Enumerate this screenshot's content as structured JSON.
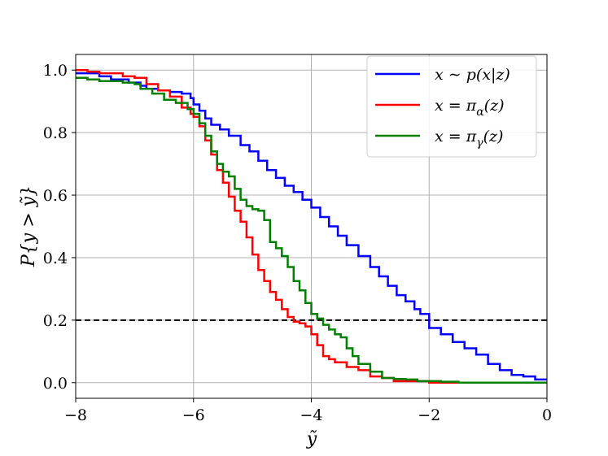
{
  "chart_data": {
    "type": "line",
    "xlabel": "ỹ",
    "ylabel": "P{y > ỹ}",
    "xlim": [
      -8,
      0
    ],
    "ylim": [
      -0.05,
      1.05
    ],
    "xticks": [
      -8,
      -6,
      -4,
      -2,
      0
    ],
    "xtick_labels": [
      "−8",
      "−6",
      "−4",
      "−2",
      "0"
    ],
    "yticks": [
      0.0,
      0.2,
      0.4,
      0.6,
      0.8,
      1.0
    ],
    "ytick_labels": [
      "0.0",
      "0.2",
      "0.4",
      "0.6",
      "0.8",
      "1.0"
    ],
    "grid": true,
    "legend_position": "top-right",
    "reference_line": {
      "y": 0.2,
      "style": "dashed",
      "color": "#000000"
    },
    "series": [
      {
        "name": "x ∼ p(x|z)",
        "color": "#0000ff",
        "x": [
          -8.0,
          -7.8,
          -7.6,
          -7.4,
          -7.1,
          -6.9,
          -6.8,
          -6.6,
          -6.4,
          -6.2,
          -6.05,
          -6.0,
          -5.9,
          -5.8,
          -5.7,
          -5.55,
          -5.4,
          -5.2,
          -5.05,
          -4.9,
          -4.75,
          -4.6,
          -4.45,
          -4.3,
          -4.15,
          -4.0,
          -3.85,
          -3.7,
          -3.55,
          -3.4,
          -3.2,
          -3.0,
          -2.85,
          -2.7,
          -2.55,
          -2.4,
          -2.25,
          -2.15,
          -2.0,
          -1.8,
          -1.6,
          -1.4,
          -1.2,
          -1.0,
          -0.8,
          -0.6,
          -0.4,
          -0.2,
          0.0
        ],
        "values": [
          0.99,
          0.99,
          0.98,
          0.97,
          0.96,
          0.95,
          0.94,
          0.935,
          0.93,
          0.925,
          0.91,
          0.89,
          0.87,
          0.845,
          0.825,
          0.81,
          0.79,
          0.76,
          0.74,
          0.71,
          0.68,
          0.655,
          0.63,
          0.61,
          0.585,
          0.56,
          0.53,
          0.5,
          0.47,
          0.44,
          0.405,
          0.37,
          0.34,
          0.31,
          0.28,
          0.26,
          0.235,
          0.22,
          0.175,
          0.155,
          0.13,
          0.11,
          0.09,
          0.06,
          0.04,
          0.025,
          0.02,
          0.01,
          0.01
        ]
      },
      {
        "name": "x = π_α(z)",
        "color": "#ff0000",
        "x": [
          -8.0,
          -7.8,
          -7.6,
          -7.4,
          -7.2,
          -7.0,
          -6.8,
          -6.6,
          -6.4,
          -6.2,
          -6.05,
          -6.0,
          -5.9,
          -5.8,
          -5.7,
          -5.6,
          -5.5,
          -5.4,
          -5.3,
          -5.2,
          -5.1,
          -5.0,
          -4.9,
          -4.8,
          -4.7,
          -4.6,
          -4.5,
          -4.4,
          -4.3,
          -4.2,
          -4.1,
          -4.0,
          -3.9,
          -3.8,
          -3.7,
          -3.6,
          -3.4,
          -3.2,
          -3.0,
          -2.8,
          -2.6,
          -2.4,
          -2.2,
          -2.0,
          -1.8,
          -1.5,
          -1.0,
          -0.5,
          0.0
        ],
        "values": [
          1.0,
          0.995,
          0.99,
          0.99,
          0.98,
          0.975,
          0.955,
          0.935,
          0.915,
          0.88,
          0.86,
          0.85,
          0.82,
          0.775,
          0.73,
          0.68,
          0.64,
          0.595,
          0.55,
          0.515,
          0.465,
          0.41,
          0.36,
          0.325,
          0.29,
          0.265,
          0.235,
          0.21,
          0.195,
          0.19,
          0.18,
          0.155,
          0.12,
          0.085,
          0.075,
          0.065,
          0.05,
          0.04,
          0.02,
          0.015,
          0.005,
          0.005,
          0.005,
          0.0,
          0.0,
          0.0,
          0.0,
          0.0,
          0.0
        ]
      },
      {
        "name": "x = π_γ(z)",
        "color": "#008000",
        "x": [
          -8.0,
          -7.8,
          -7.6,
          -7.4,
          -7.2,
          -7.0,
          -6.9,
          -6.7,
          -6.5,
          -6.3,
          -6.1,
          -6.0,
          -5.9,
          -5.8,
          -5.7,
          -5.6,
          -5.5,
          -5.4,
          -5.3,
          -5.2,
          -5.1,
          -5.0,
          -4.9,
          -4.8,
          -4.7,
          -4.6,
          -4.5,
          -4.4,
          -4.3,
          -4.2,
          -4.1,
          -4.0,
          -3.9,
          -3.8,
          -3.7,
          -3.6,
          -3.5,
          -3.4,
          -3.3,
          -3.2,
          -3.0,
          -2.8,
          -2.6,
          -2.4,
          -2.2,
          -2.0,
          -1.8,
          -1.5,
          -1.0,
          -0.5,
          0.0
        ],
        "values": [
          0.975,
          0.97,
          0.965,
          0.965,
          0.96,
          0.955,
          0.94,
          0.925,
          0.905,
          0.895,
          0.875,
          0.86,
          0.83,
          0.79,
          0.74,
          0.7,
          0.675,
          0.66,
          0.62,
          0.585,
          0.565,
          0.555,
          0.55,
          0.52,
          0.45,
          0.43,
          0.405,
          0.37,
          0.325,
          0.295,
          0.255,
          0.22,
          0.205,
          0.185,
          0.17,
          0.155,
          0.145,
          0.11,
          0.085,
          0.06,
          0.035,
          0.015,
          0.012,
          0.01,
          0.005,
          0.005,
          0.003,
          0.0,
          0.0,
          0.0,
          0.0
        ]
      }
    ]
  }
}
